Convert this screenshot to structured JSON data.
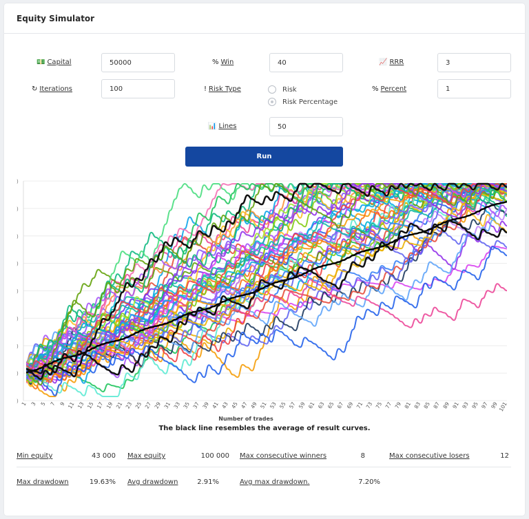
{
  "title": "Equity Simulator",
  "fields": {
    "capital": {
      "label": "Capital",
      "value": "50000"
    },
    "win": {
      "label": "Win",
      "value": "40"
    },
    "rrr": {
      "label": "RRR",
      "value": "3"
    },
    "iterations": {
      "label": "Iterations",
      "value": "100"
    },
    "risk_type": {
      "label": "Risk Type",
      "options": [
        "Risk",
        "Risk Percentage"
      ],
      "selected": "Risk Percentage"
    },
    "percent": {
      "label": "Percent",
      "value": "1"
    },
    "lines": {
      "label": "Lines",
      "value": "50"
    }
  },
  "run_label": "Run",
  "chart_data": {
    "type": "line",
    "title": "",
    "xlabel": "Number of trades",
    "ylabel": "",
    "x_ticks": [
      "1",
      "3",
      "5",
      "7",
      "9",
      "11",
      "13",
      "15",
      "17",
      "19",
      "21",
      "23",
      "25",
      "27",
      "29",
      "31",
      "33",
      "35",
      "37",
      "39",
      "41",
      "43",
      "45",
      "47",
      "49",
      "51",
      "53",
      "55",
      "57",
      "59",
      "61",
      "63",
      "65",
      "67",
      "69",
      "71",
      "73",
      "75",
      "77",
      "79",
      "81",
      "83",
      "85",
      "87",
      "89",
      "91",
      "93",
      "95",
      "97",
      "99",
      "101"
    ],
    "xlim": [
      1,
      101
    ],
    "num_series": 50,
    "series_colors": [
      "#e74c3c",
      "#3b82f6",
      "#22c55e",
      "#f59e0b",
      "#8b5cf6",
      "#06b6d4",
      "#ec4899",
      "#a855f7",
      "#10b981",
      "#f97316",
      "#6366f1",
      "#84cc16",
      "#0ea5e9",
      "#d946ef",
      "#eab308",
      "#14b8a6",
      "#ef4444",
      "#9333ea",
      "#2563eb",
      "#65a30d",
      "#fb923c",
      "#7c3aed",
      "#1e3a5f",
      "#fbbf24",
      "#5eead4",
      "#c084fc",
      "#4ade80",
      "#f472b6",
      "#60a5fa",
      "#a3e635"
    ],
    "average": {
      "name": "Average",
      "color": "#000000",
      "start": 50000,
      "end": 100000
    },
    "note": "The black line resembles the average of result curves."
  },
  "stats": {
    "min_equity": {
      "label": "Min equity",
      "value": "43 000"
    },
    "max_equity": {
      "label": "Max equity",
      "value": "100 000"
    },
    "max_consec_winners": {
      "label": "Max consecutive winners",
      "value": "8"
    },
    "max_consec_losers": {
      "label": "Max consecutive losers",
      "value": "12"
    },
    "max_drawdown": {
      "label": "Max drawdown",
      "value": "19.63%"
    },
    "avg_drawdown": {
      "label": "Avg drawdown",
      "value": "2.91%"
    },
    "avg_max_drawdown": {
      "label": "Avg max drawdown.",
      "value": "7.20%"
    }
  }
}
